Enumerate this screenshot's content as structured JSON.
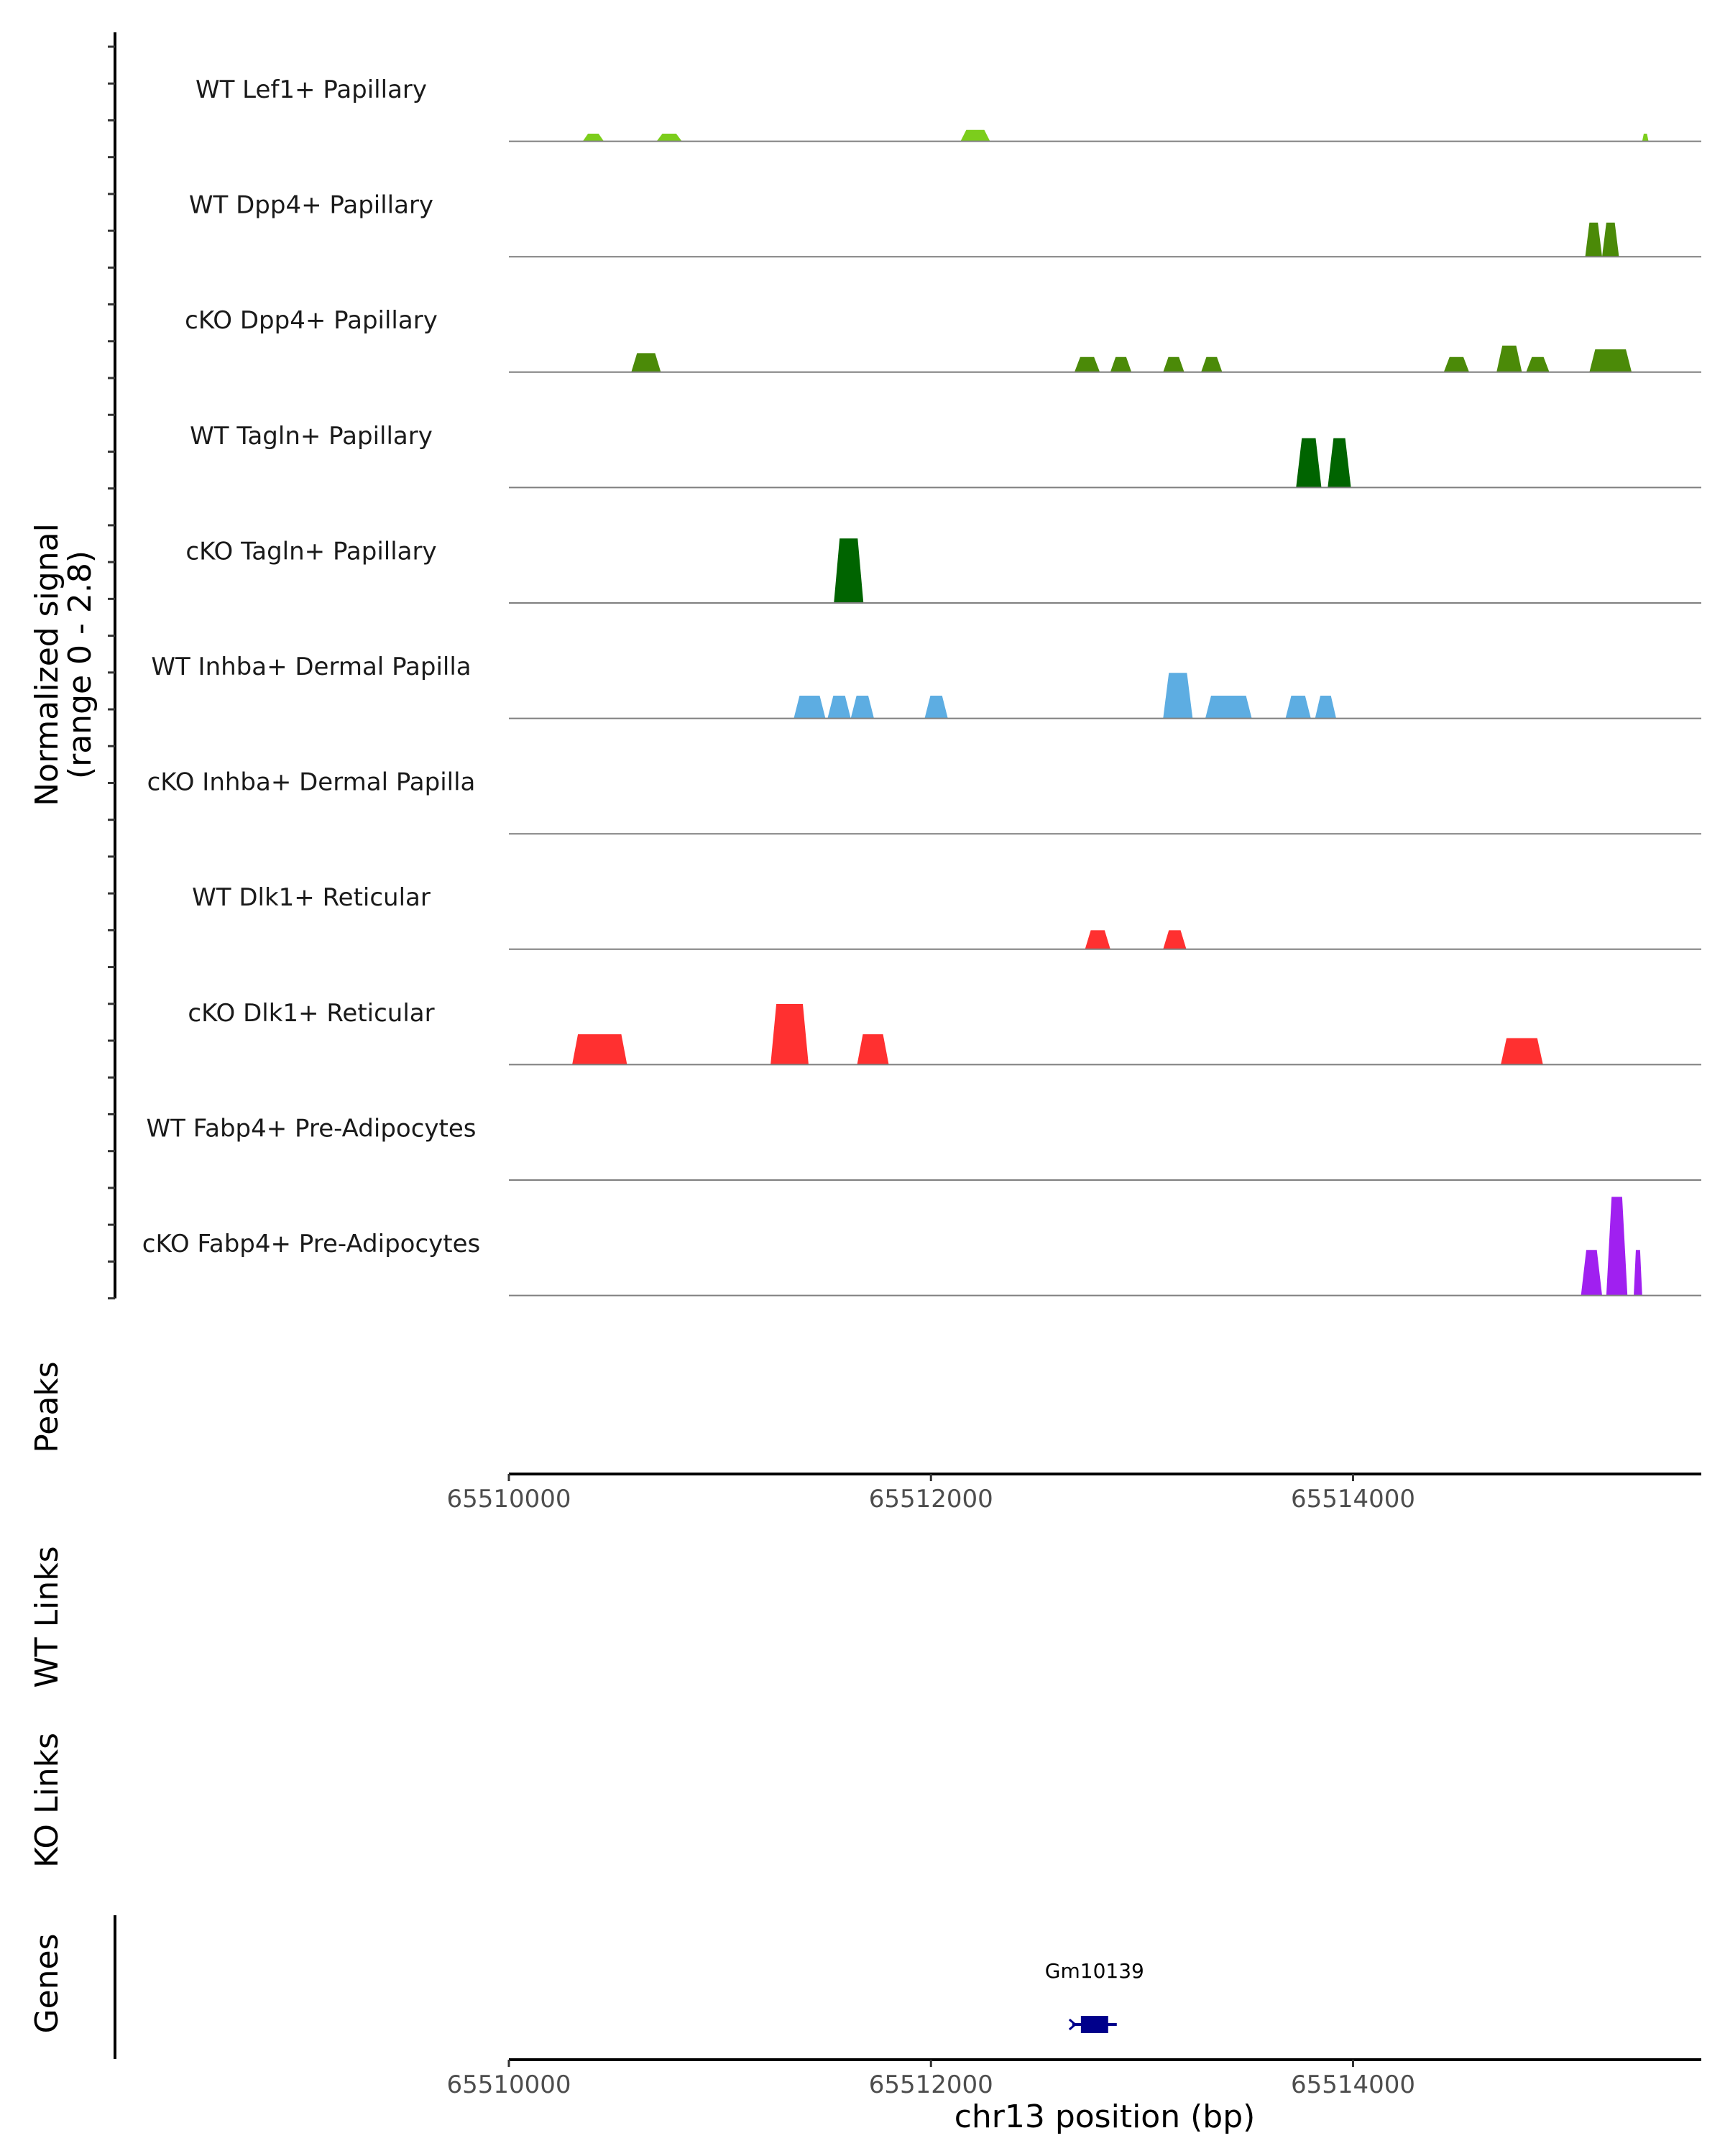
{
  "chart_data": {
    "type": "area",
    "title": "",
    "chromosome": "chr13",
    "xlabel": "chr13 position (bp)",
    "xlim": [
      65510000,
      65515650
    ],
    "xticks": [
      "65510000",
      "65512000",
      "65514000"
    ],
    "ylabel_lines": [
      "Normalized signal",
      "(range 0 - 2.8)"
    ],
    "ylim": [
      0,
      2.8
    ],
    "tracks": [
      {
        "name": "WT Lef1+ Papillary",
        "color": "#7CCD1C",
        "peaks": [
          [
            65510350,
            65510450,
            0.2
          ],
          [
            65510700,
            65510820,
            0.2
          ],
          [
            65512140,
            65512280,
            0.3
          ],
          [
            65515370,
            65515400,
            0.2
          ]
        ]
      },
      {
        "name": "WT Dpp4+ Papillary",
        "color": "#4B8A08",
        "peaks": [
          [
            65515100,
            65515180,
            0.9
          ],
          [
            65515180,
            65515260,
            0.9
          ]
        ]
      },
      {
        "name": "cKO Dpp4+ Papillary",
        "color": "#4B8A08",
        "peaks": [
          [
            65510580,
            65510720,
            0.5
          ],
          [
            65512680,
            65512800,
            0.4
          ],
          [
            65512850,
            65512950,
            0.4
          ],
          [
            65513100,
            65513200,
            0.4
          ],
          [
            65513280,
            65513380,
            0.4
          ],
          [
            65514430,
            65514550,
            0.4
          ],
          [
            65514680,
            65514800,
            0.7
          ],
          [
            65514820,
            65514930,
            0.4
          ],
          [
            65515120,
            65515320,
            0.6
          ]
        ]
      },
      {
        "name": "WT Tagln+ Papillary",
        "color": "#006400",
        "peaks": [
          [
            65513730,
            65513850,
            1.3
          ],
          [
            65513880,
            65513990,
            1.3
          ]
        ]
      },
      {
        "name": "cKO Tagln+ Papillary",
        "color": "#006400",
        "peaks": [
          [
            65511540,
            65511680,
            1.7
          ]
        ]
      },
      {
        "name": "WT Inhba+ Dermal Papilla",
        "color": "#5DADE2",
        "peaks": [
          [
            65511350,
            65511500,
            0.6
          ],
          [
            65511510,
            65511620,
            0.6
          ],
          [
            65511620,
            65511730,
            0.6
          ],
          [
            65511970,
            65512080,
            0.6
          ],
          [
            65513100,
            65513240,
            1.2
          ],
          [
            65513300,
            65513520,
            0.6
          ],
          [
            65513680,
            65513800,
            0.6
          ],
          [
            65513820,
            65513920,
            0.6
          ]
        ]
      },
      {
        "name": "cKO Inhba+ Dermal Papilla",
        "color": "#5DADE2",
        "peaks": []
      },
      {
        "name": "WT Dlk1+ Reticular",
        "color": "#FF3030",
        "peaks": [
          [
            65512730,
            65512850,
            0.5
          ],
          [
            65513100,
            65513210,
            0.5
          ]
        ]
      },
      {
        "name": "cKO Dlk1+ Reticular",
        "color": "#FF3030",
        "peaks": [
          [
            65510300,
            65510560,
            0.8
          ],
          [
            65511240,
            65511420,
            1.6
          ],
          [
            65511650,
            65511800,
            0.8
          ],
          [
            65514700,
            65514900,
            0.7
          ]
        ]
      },
      {
        "name": "WT Fabp4+ Pre-Adipocytes",
        "color": "#A020F0",
        "peaks": []
      },
      {
        "name": "cKO Fabp4+ Pre-Adipocytes",
        "color": "#A020F0",
        "peaks": [
          [
            65515080,
            65515180,
            1.2
          ],
          [
            65515200,
            65515300,
            2.6
          ],
          [
            65515330,
            65515370,
            1.2
          ]
        ]
      }
    ],
    "panels": {
      "peaks": "Peaks",
      "wt_links": "WT Links",
      "ko_links": "KO Links",
      "genes": "Genes"
    },
    "genes": [
      {
        "name": "Gm10139",
        "start": 65512690,
        "end": 65512860,
        "color": "#00008B"
      }
    ]
  }
}
